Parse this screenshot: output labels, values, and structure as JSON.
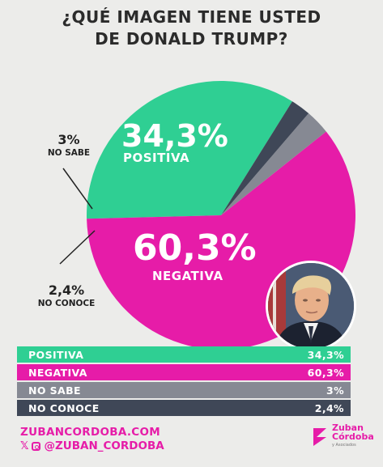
{
  "title": {
    "line1": "¿QUÉ IMAGEN TIENE USTED",
    "line2": "DE DONALD TRUMP?"
  },
  "chart_data": {
    "type": "pie",
    "title": "¿QUÉ IMAGEN TIENE USTED DE DONALD TRUMP?",
    "categories": [
      "POSITIVA",
      "NEGATIVA",
      "NO SABE",
      "NO CONOCE"
    ],
    "values": [
      34.3,
      60.3,
      3,
      2.4
    ],
    "value_labels": [
      "34,3%",
      "60,3%",
      "3%",
      "2,4%"
    ],
    "colors": [
      "#2fcf93",
      "#e61ca8",
      "#868993",
      "#3f4757"
    ]
  },
  "table": {
    "rows": [
      {
        "label": "POSITIVA",
        "value": "34,3%",
        "color": "#2fcf93"
      },
      {
        "label": "NEGATIVA",
        "value": "60,3%",
        "color": "#e61ca8"
      },
      {
        "label": "NO SABE",
        "value": "3%",
        "color": "#868993"
      },
      {
        "label": "NO CONOCE",
        "value": "2,4%",
        "color": "#3f4757"
      }
    ]
  },
  "footer": {
    "website": "ZUBANCORDOBA.COM",
    "handle": "@ZUBAN_CORDOBA",
    "icons": [
      "x-icon",
      "instagram-icon"
    ]
  },
  "brand": {
    "line1": "Zuban",
    "line2": "Córdoba",
    "line3": "y Asociados",
    "color": "#e61ca8"
  }
}
